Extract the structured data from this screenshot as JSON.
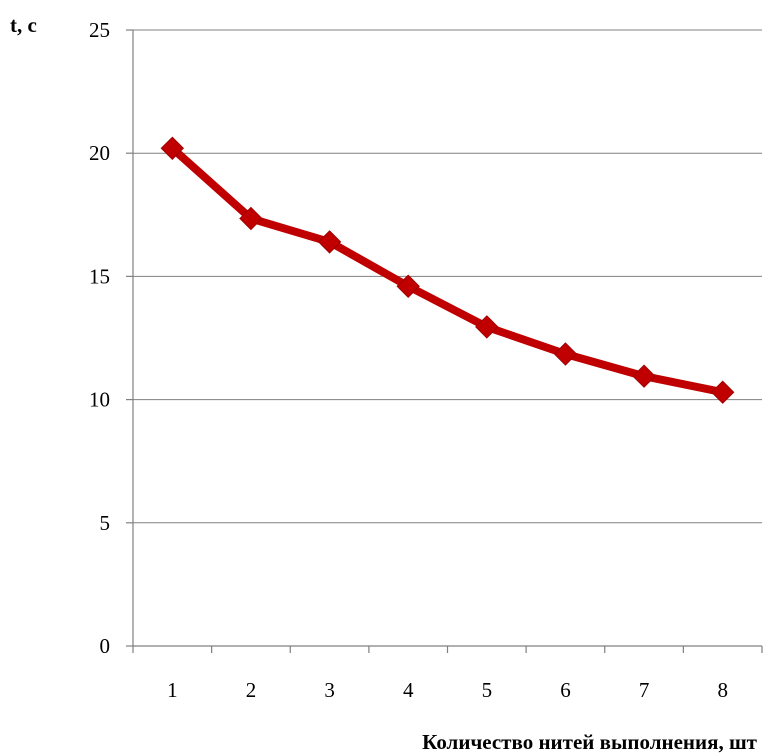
{
  "chart_data": {
    "type": "line",
    "title": "",
    "xlabel": "Количество нитей выполнения, шт",
    "ylabel": "t, с",
    "categories": [
      "1",
      "2",
      "3",
      "4",
      "5",
      "6",
      "7",
      "8"
    ],
    "series": [
      {
        "values": [
          20.2,
          17.35,
          16.4,
          14.6,
          12.95,
          11.85,
          10.95,
          10.3
        ],
        "color": "#c00000",
        "marker": "diamond"
      }
    ],
    "ylim": [
      0,
      25
    ],
    "yticks": [
      0,
      5,
      10,
      15,
      20,
      25
    ],
    "grid": true,
    "legend": "none"
  }
}
